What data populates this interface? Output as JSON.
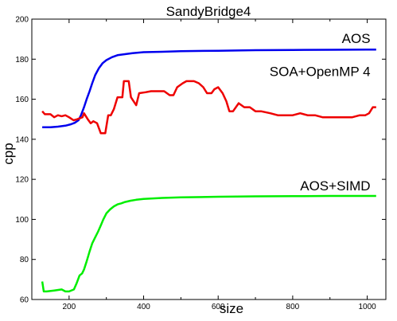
{
  "chart_data": {
    "type": "line",
    "title": "SandyBridge4",
    "xlabel": "size",
    "ylabel": "cpp",
    "xlim": [
      100,
      1050
    ],
    "ylim": [
      60,
      200
    ],
    "xticks": [
      200,
      400,
      600,
      800,
      1000
    ],
    "xticks_minor": [
      300,
      500,
      700,
      900
    ],
    "yticks": [
      60,
      80,
      100,
      120,
      140,
      160,
      180,
      200
    ],
    "grid": false,
    "legend": "inline labels",
    "series": [
      {
        "name": "AOS",
        "color": "#0000ee",
        "x": [
          128,
          150,
          170,
          190,
          205,
          215,
          225,
          232,
          240,
          247,
          255,
          262,
          270,
          280,
          290,
          300,
          315,
          330,
          350,
          370,
          400,
          450,
          500,
          600,
          700,
          800,
          900,
          1000,
          1024
        ],
        "y": [
          146,
          146,
          146.3,
          146.8,
          147.5,
          148.2,
          149.5,
          152,
          156,
          160,
          164,
          168,
          172,
          175.5,
          178,
          179.5,
          181,
          182,
          182.5,
          183,
          183.5,
          183.7,
          184,
          184.2,
          184.5,
          184.6,
          184.7,
          184.8,
          184.8
        ]
      },
      {
        "name": "SOA+OpenMP 4",
        "color": "#ee0000",
        "x": [
          128,
          135,
          150,
          160,
          170,
          180,
          190,
          200,
          212,
          222,
          236,
          240,
          250,
          258,
          265,
          275,
          285,
          297,
          305,
          312,
          320,
          330,
          343,
          347,
          360,
          366,
          380,
          388,
          405,
          420,
          428,
          440,
          455,
          470,
          480,
          490,
          505,
          515,
          535,
          548,
          560,
          570,
          582,
          590,
          600,
          612,
          622,
          630,
          640,
          655,
          670,
          685,
          700,
          715,
          740,
          760,
          780,
          800,
          820,
          840,
          860,
          880,
          900,
          920,
          940,
          960,
          980,
          995,
          1005,
          1015,
          1024
        ],
        "y": [
          154,
          152.5,
          152.5,
          151,
          152,
          151.5,
          152,
          151,
          149.5,
          150,
          151,
          153,
          150,
          148,
          149,
          148,
          143,
          143,
          152,
          152,
          155,
          161,
          161,
          169,
          169,
          161,
          157,
          163,
          163.5,
          164,
          164,
          164,
          164,
          162,
          162,
          166,
          168,
          169,
          169,
          168,
          166,
          163,
          163,
          165,
          166,
          163,
          159,
          154,
          154,
          158,
          156,
          156,
          154,
          154,
          153,
          152,
          152,
          152,
          153,
          152,
          152,
          151,
          151,
          151,
          151,
          151,
          152,
          152,
          153,
          156,
          156
        ]
      },
      {
        "name": "AOS+SIMD",
        "color": "#00ee00",
        "x": [
          128,
          132,
          140,
          160,
          180,
          190,
          200,
          213,
          220,
          228,
          235,
          240,
          247,
          255,
          262,
          270,
          278,
          285,
          292,
          300,
          310,
          320,
          330,
          340,
          350,
          365,
          380,
          400,
          450,
          500,
          600,
          700,
          800,
          900,
          1000,
          1024
        ],
        "y": [
          69,
          64,
          64,
          64.5,
          65,
          64,
          64,
          65,
          68,
          72,
          73,
          75,
          79,
          84,
          88,
          91,
          94,
          97,
          100,
          103,
          105,
          106.5,
          107.5,
          108,
          108.7,
          109.3,
          109.8,
          110.2,
          110.7,
          111,
          111.3,
          111.5,
          111.6,
          111.7,
          111.7,
          111.7
        ]
      }
    ]
  }
}
